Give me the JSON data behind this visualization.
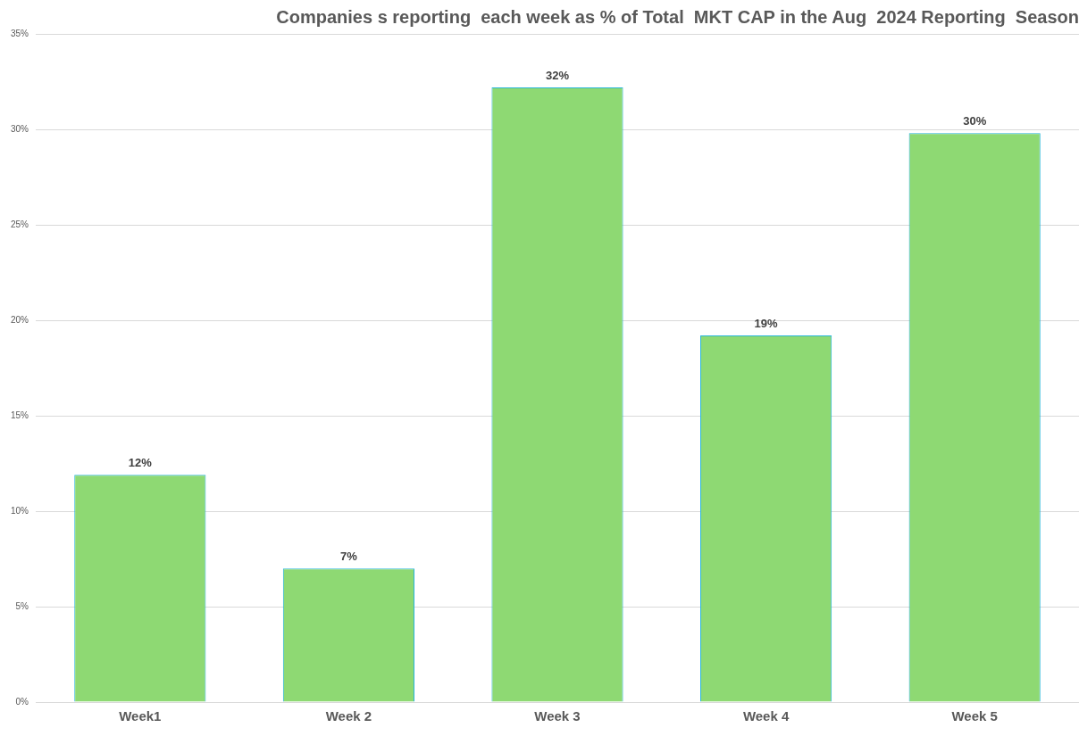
{
  "chart_data": {
    "type": "bar",
    "title": "Companies s reporting  each week as % of Total  MKT CAP in the Aug  2024 Reporting  Season",
    "categories": [
      "Week1",
      "Week 2",
      "Week 3",
      "Week 4",
      "Week 5"
    ],
    "values": [
      11.9,
      7.0,
      32.2,
      19.2,
      29.8
    ],
    "value_labels": [
      "12%",
      "7%",
      "32%",
      "19%",
      "30%"
    ],
    "color": "#8ed973",
    "ylim": [
      0,
      35
    ],
    "yticks": [
      {
        "value": 0,
        "label": "0%"
      },
      {
        "value": 5,
        "label": "5%"
      },
      {
        "value": 10,
        "label": "10%"
      },
      {
        "value": 15,
        "label": "15%"
      },
      {
        "value": 20,
        "label": "20%"
      },
      {
        "value": 25,
        "label": "25%"
      },
      {
        "value": 30,
        "label": "30%"
      },
      {
        "value": 35,
        "label": "35%"
      }
    ],
    "grid": "y"
  }
}
